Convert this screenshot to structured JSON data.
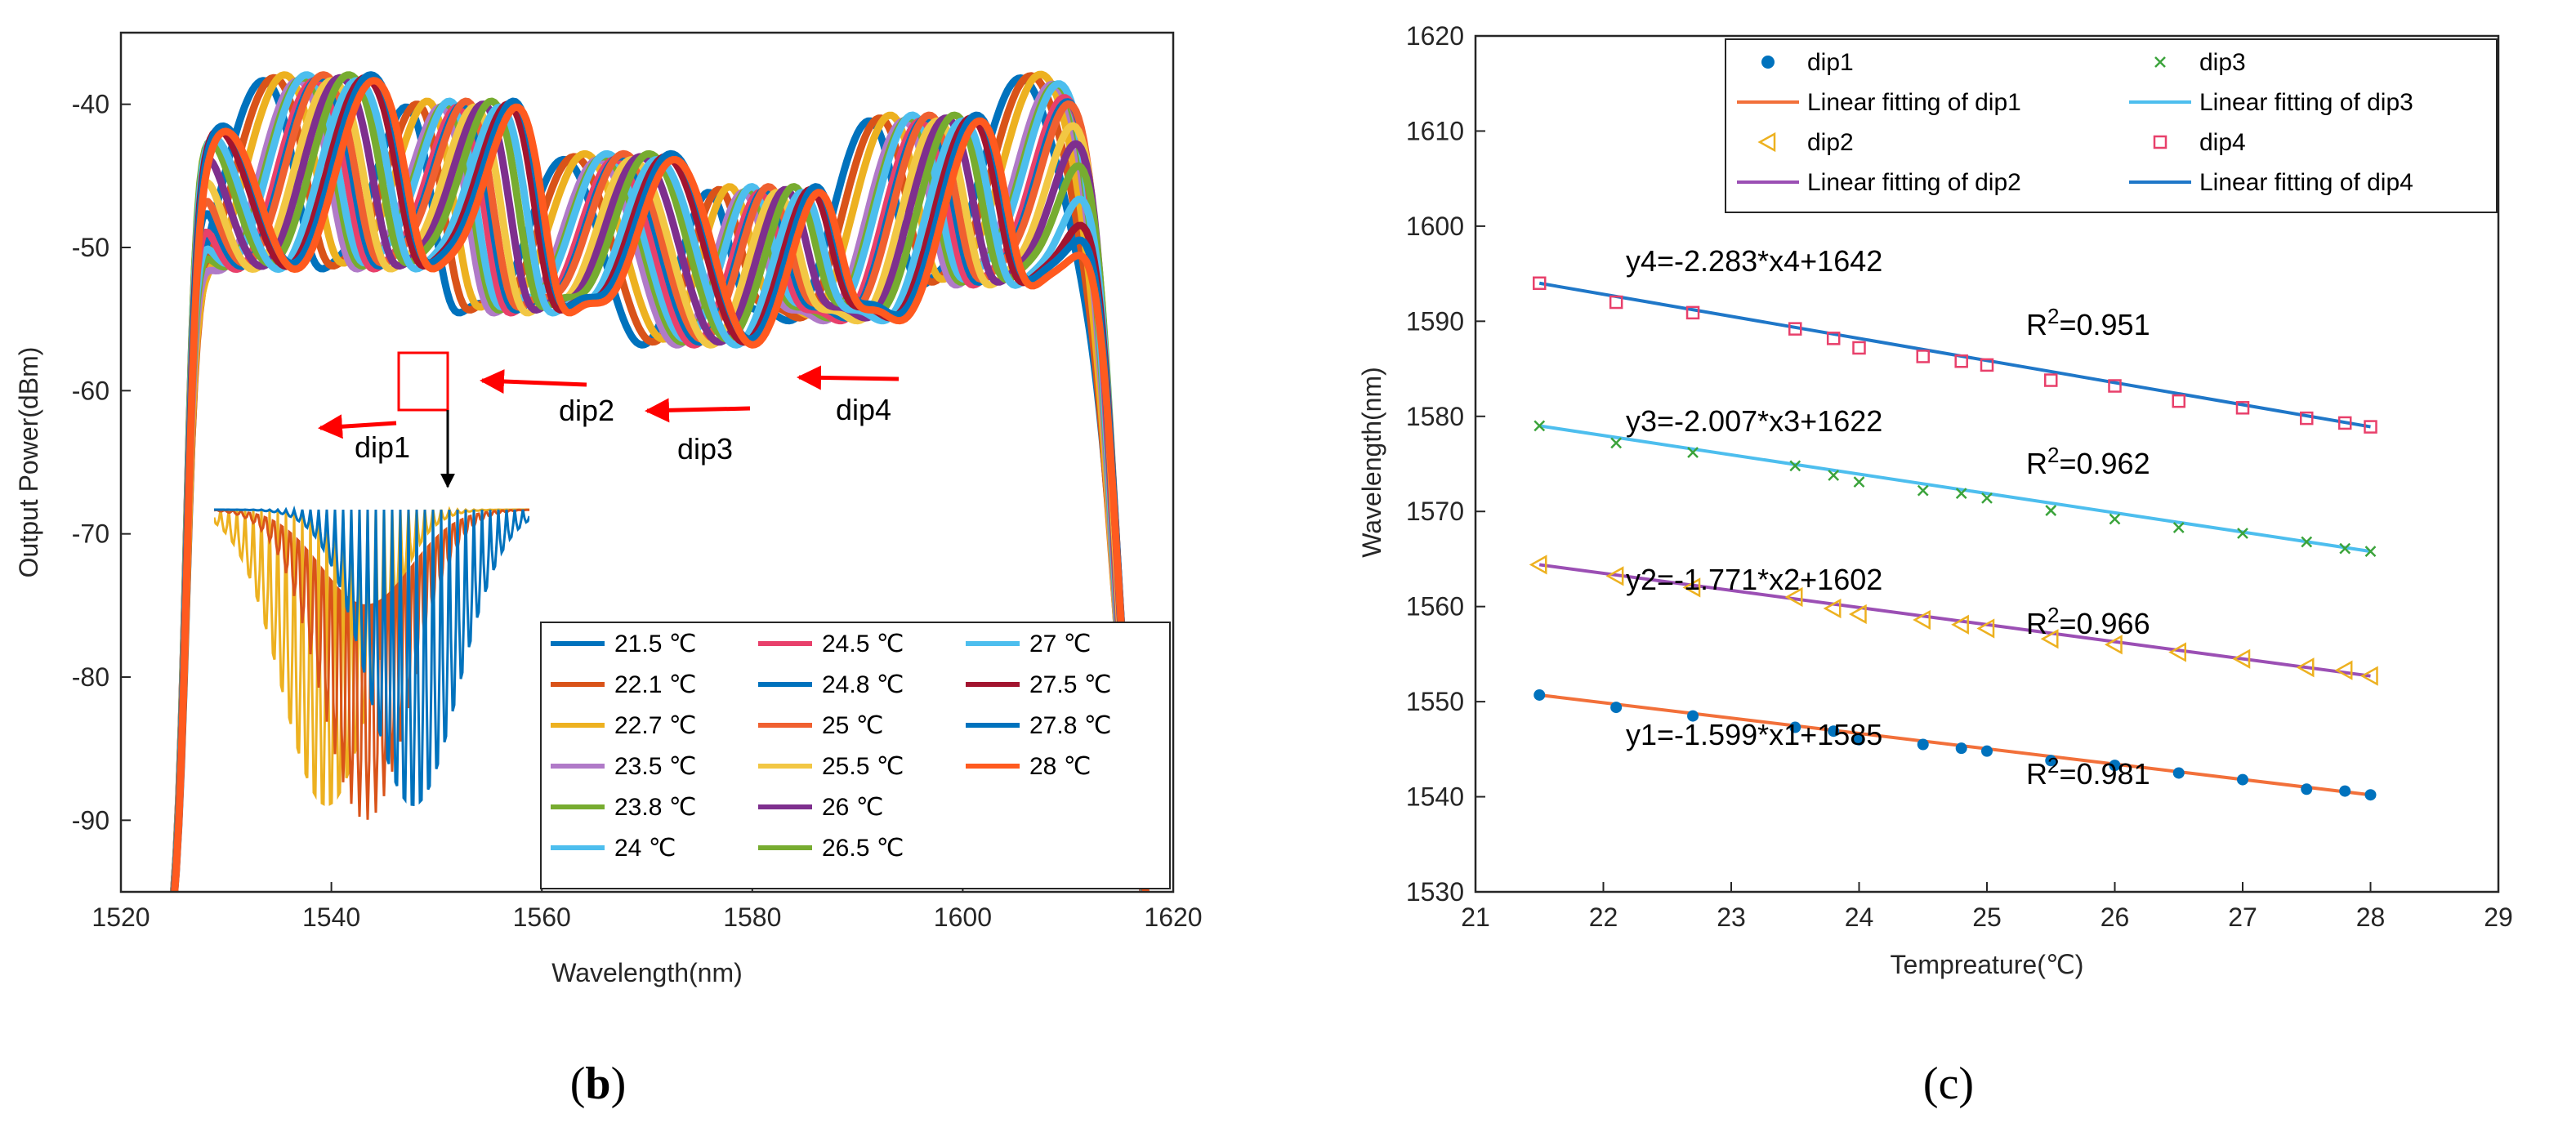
{
  "chart_data": [
    {
      "panel": "b",
      "type": "line",
      "title": "",
      "xlabel": "Wavelength(nm)",
      "ylabel": "Output Power(dBm)",
      "xlim": [
        1520,
        1620
      ],
      "ylim": [
        -95,
        -35
      ],
      "xticks": [
        1520,
        1540,
        1560,
        1580,
        1600,
        1620
      ],
      "yticks": [
        -90,
        -80,
        -70,
        -60,
        -50,
        -40
      ],
      "series": [
        {
          "name": "21.5 ℃",
          "color": "#0072BD"
        },
        {
          "name": "22.1 ℃",
          "color": "#D95319"
        },
        {
          "name": "22.7 ℃",
          "color": "#EDB120"
        },
        {
          "name": "23.5 ℃",
          "color": "#B07AC8"
        },
        {
          "name": "23.8 ℃",
          "color": "#77AC30"
        },
        {
          "name": "24 ℃",
          "color": "#4DBEEE"
        },
        {
          "name": "24.5 ℃",
          "color": "#E8406B"
        },
        {
          "name": "24.8 ℃",
          "color": "#0072BD"
        },
        {
          "name": "25 ℃",
          "color": "#F06030"
        },
        {
          "name": "25.5 ℃",
          "color": "#F2C744"
        },
        {
          "name": "26 ℃",
          "color": "#7E2F8E"
        },
        {
          "name": "26.5 ℃",
          "color": "#77AC30"
        },
        {
          "name": "27 ℃",
          "color": "#4DBEEE"
        },
        {
          "name": "27.5 ℃",
          "color": "#A2142F"
        },
        {
          "name": "27.8 ℃",
          "color": "#0072BD"
        },
        {
          "name": "28 ℃",
          "color": "#FF5A1F"
        }
      ],
      "annotations": [
        "dip1",
        "dip2",
        "dip3",
        "dip4"
      ],
      "arrow_color": "#FF0000"
    },
    {
      "panel": "c",
      "type": "scatter",
      "title": "",
      "xlabel": "Tempreature(℃)",
      "ylabel": "Wavelength(nm)",
      "xlim": [
        21,
        29
      ],
      "ylim": [
        1530,
        1620
      ],
      "xticks": [
        21,
        22,
        23,
        24,
        25,
        26,
        27,
        28,
        29
      ],
      "yticks": [
        1530,
        1540,
        1550,
        1560,
        1570,
        1580,
        1590,
        1600,
        1610,
        1620
      ],
      "x": [
        21.5,
        22.1,
        22.7,
        23.5,
        23.8,
        24,
        24.5,
        24.8,
        25,
        25.5,
        26,
        26.5,
        27,
        27.5,
        27.8,
        28
      ],
      "series": [
        {
          "name": "dip1",
          "marker": "circle",
          "color": "#0072BD",
          "values": [
            1550.7,
            1549.4,
            1548.5,
            1547.3,
            1546.9,
            1546.0,
            1545.5,
            1545.1,
            1544.8,
            1543.8,
            1543.3,
            1542.5,
            1541.8,
            1540.8,
            1540.6,
            1540.2
          ],
          "fit": {
            "name": "Linear fitting of dip1",
            "color": "#F2703A",
            "slope": -1.599,
            "intercept": 1585
          }
        },
        {
          "name": "dip2",
          "marker": "triangle-left",
          "color": "#EDB120",
          "values": [
            1564.4,
            1563.2,
            1562.0,
            1561.0,
            1559.8,
            1559.2,
            1558.6,
            1558.1,
            1557.7,
            1556.6,
            1556.0,
            1555.2,
            1554.5,
            1553.6,
            1553.3,
            1552.7
          ],
          "fit": {
            "name": "Linear fitting of dip2",
            "color": "#9B4FB4",
            "slope": -1.771,
            "intercept": 1602
          }
        },
        {
          "name": "dip3",
          "marker": "x",
          "color": "#3BA33B",
          "values": [
            1579.0,
            1577.2,
            1576.2,
            1574.8,
            1573.8,
            1573.1,
            1572.2,
            1571.9,
            1571.4,
            1570.1,
            1569.2,
            1568.3,
            1567.7,
            1566.8,
            1566.1,
            1565.8
          ],
          "fit": {
            "name": "Linear fitting of dip3",
            "color": "#4DBEEE",
            "slope": -2.007,
            "intercept": 1622
          }
        },
        {
          "name": "dip4",
          "marker": "square",
          "color": "#E8406B",
          "values": [
            1594.0,
            1592.0,
            1590.9,
            1589.2,
            1588.2,
            1587.2,
            1586.3,
            1585.8,
            1585.4,
            1583.8,
            1583.2,
            1581.6,
            1580.9,
            1579.8,
            1579.3,
            1578.9
          ],
          "fit": {
            "name": "Linear fitting of dip4",
            "color": "#1F77C8",
            "slope": -2.283,
            "intercept": 1642
          }
        }
      ],
      "legend": [
        "dip1",
        "dip3",
        "Linear fitting of dip1",
        "Linear fitting of dip3",
        "dip2",
        "dip4",
        "Linear fitting of dip2",
        "Linear fitting of dip4"
      ],
      "equations": [
        {
          "text": "y4=-2.283*x4+1642",
          "r2": "0.951"
        },
        {
          "text": "y3=-2.007*x3+1622",
          "r2": "0.962"
        },
        {
          "text": "y2=-1.771*x2+1602",
          "r2": "0.966"
        },
        {
          "text": "y1=-1.599*x1+1585",
          "r2": "0.981"
        }
      ]
    }
  ],
  "labels": {
    "panel_b_open": "(",
    "panel_b_letter": "b",
    "panel_b_close": ")",
    "panel_c": "(c)",
    "r2_prefix": "R",
    "r2_sup": "2",
    "r2_eq": "="
  }
}
